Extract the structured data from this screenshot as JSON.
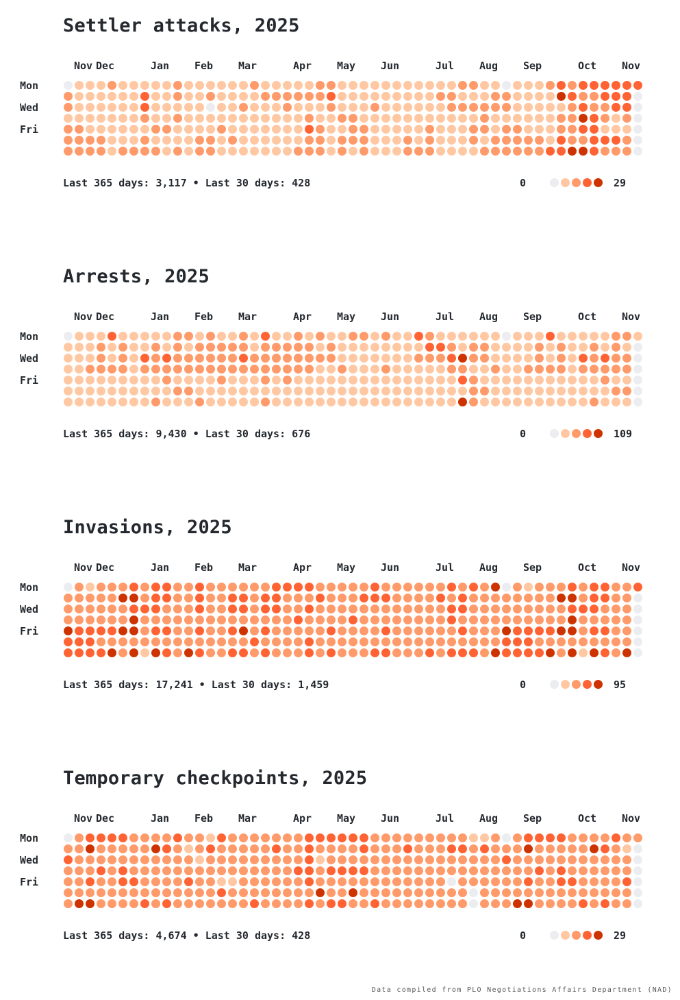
{
  "palette": [
    "#ebedf0",
    "#ffc8a3",
    "#ff9a6a",
    "#ff6333",
    "#cc3300"
  ],
  "footer": "Data compiled from PLO Negotiations Affairs Department (NAD)",
  "day_labels": [
    "Mon",
    "Wed",
    "Fri"
  ],
  "months": [
    "Nov",
    "Dec",
    "Jan",
    "Feb",
    "Mar",
    "Apr",
    "May",
    "Jun",
    "Jul",
    "Aug",
    "Sep",
    "Oct",
    "Nov"
  ],
  "chart_data": [
    {
      "type": "heatmap",
      "title": "Settler attacks, 2025",
      "summary": "Last 365 days: 3,117  •  Last 30 days: 428",
      "legend_min": "0",
      "legend_max": "29",
      "weeks": 53,
      "pattern": [
        "0111211111211111121111122111111111112211",
        "2111111311211211112222223111111111221112",
        "2111111311111011211121112111211111122222",
        "1111111211211111111111211221111111111121",
        "2211111122111121111111321122111112111221",
        "2222111211112212111111221222111212111212",
        "2222122221212211111112221212111222111122"
      ],
      "hot": [
        "0000000000000000000000000000000000000232333333",
        "0000000000000000000000000000000000000043223333",
        "0000000000000000000000000000000000000002322330",
        "0000000000000000000000000000000000000022432120",
        "0000000000000000000000000000000000000022331000",
        "0000000000000000000000000000000000000032233320",
        "0000000000000000000000000000000000000334432220"
      ]
    },
    {
      "type": "heatmap",
      "title": "Arrests, 2025",
      "summary": "Last 365 days: 9,430  •  Last 30 days: 676",
      "legend_min": "0",
      "legend_max": "109",
      "weeks": 53,
      "pattern": [
        "0111311111221211213112121122121132111111",
        "1112121121212222212222212111111113321221",
        "1112121323222222322222222111111122234221",
        "1122221222222222222222211211121111122112",
        "1111111112111121112121111111111111113211",
        "1111111111221111111111111111111111111221",
        "1111111121112111112111111111111111114211"
      ],
      "hot": [],
      "weeks_used": 53
    },
    {
      "type": "heatmap",
      "title": "Invasions, 2025",
      "summary": "Last 365 days: 17,241  •  Last 30 days: 1,459",
      "legend_min": "0",
      "legend_max": "95",
      "weeks": 53,
      "pattern": [
        "0212223233223222222333322222322222232324",
        "2222244233223223323322232223332222323222",
        "2222223332223223323322322222222222233222",
        "2222224222222222222223222232222222232222",
        "4333344233223223423222223222232222223222",
        "3332222222222222232222322222222222222222",
        "3333424143243223323222323222332223233324"
      ],
      "hot": []
    },
    {
      "type": "heatmap",
      "title": "Temporary checkpoints, 2025",
      "summary": "Last 365 days: 4,674  •  Last 30 days: 428",
      "legend_min": "0",
      "legend_max": "29",
      "weeks": 53,
      "pattern": [
        "0233332222322132222222333333222222222112",
        "2242222243212322222322322223222322233232",
        "3222222222221222222222312222222222222222",
        "2223232222222222222223323333222222222222",
        "2232233222232211222222322222222222202222",
        "2222222222222232222222242242222222222022",
        "2442222323222222232222323322322222222022"
      ],
      "hot": []
    }
  ]
}
